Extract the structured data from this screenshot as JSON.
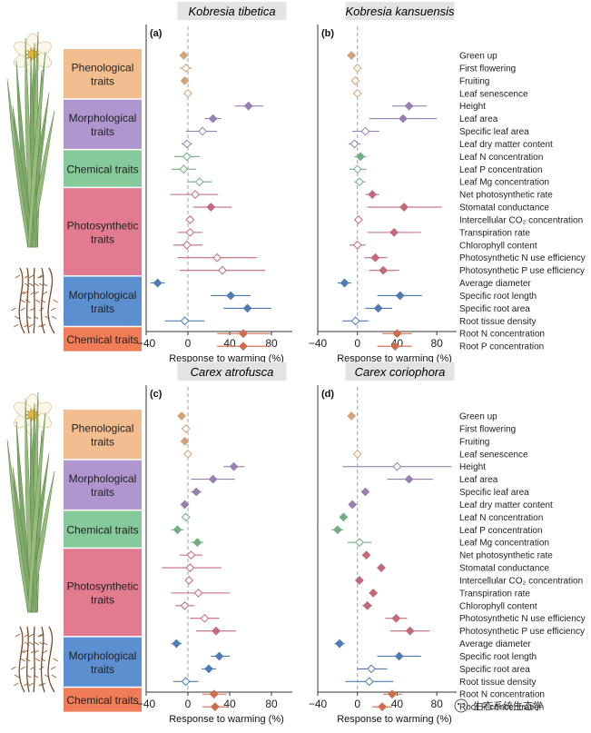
{
  "figure": {
    "watermark": "生态系统生态学"
  },
  "chart_data": {
    "type": "forest",
    "xlabel": "Response to warming (%)",
    "xlim": [
      -40,
      100
    ],
    "xticks": [
      "−40",
      "0",
      "40",
      "80"
    ],
    "trait_labels": [
      "Green up",
      "First flowering",
      "Fruiting",
      "Leaf senescence",
      "Height",
      "Leaf area",
      "Specific leaf area",
      "Leaf dry matter content",
      "Leaf N concentration",
      "Leaf P concentration",
      "Leaf Mg concentration",
      "Net photosynthetic rate",
      "Stomatal conductance",
      "Intercellular CO₂ concentration",
      "Transpiration rate",
      "Chlorophyll content",
      "Photosynthetic N use efficiency",
      "Photosynthetic P use efficiency",
      "Average diameter",
      "Specific root length",
      "Specific root area",
      "Root tissue density",
      "Root N concentration",
      "Root P concentration"
    ],
    "category_groups": [
      {
        "lines": [
          "Phenological",
          "traits"
        ],
        "first": 0,
        "last": 3,
        "color": "#F2BE8F"
      },
      {
        "lines": [
          "Morphological",
          "traits"
        ],
        "first": 4,
        "last": 7,
        "color": "#B096CE"
      },
      {
        "lines": [
          "Chemical traits"
        ],
        "first": 8,
        "last": 10,
        "color": "#86C99A"
      },
      {
        "lines": [
          "Photosynthetic",
          "traits"
        ],
        "first": 11,
        "last": 17,
        "color": "#E27A90"
      },
      {
        "lines": [
          "Morphological",
          "traits"
        ],
        "first": 18,
        "last": 21,
        "color": "#5B8FD0"
      },
      {
        "lines": [
          "Chemical traits"
        ],
        "first": 22,
        "last": 23,
        "color": "#F07D58"
      }
    ],
    "panels": [
      {
        "label": "(a)",
        "title": "Kobresia tibetica",
        "points": [
          {
            "mean": -4,
            "lo": -8,
            "hi": 0,
            "filled": true
          },
          {
            "mean": -2,
            "lo": -8,
            "hi": 4,
            "filled": false
          },
          {
            "mean": -3,
            "lo": -6,
            "hi": 0,
            "filled": true
          },
          {
            "mean": 0,
            "lo": -1,
            "hi": 1,
            "filled": false
          },
          {
            "mean": 58,
            "lo": 45,
            "hi": 72,
            "filled": true
          },
          {
            "mean": 24,
            "lo": 16,
            "hi": 32,
            "filled": true
          },
          {
            "mean": 14,
            "lo": -2,
            "hi": 28,
            "filled": false
          },
          {
            "mean": -1,
            "lo": -6,
            "hi": 4,
            "filled": false
          },
          {
            "mean": -1,
            "lo": -13,
            "hi": 11,
            "filled": false
          },
          {
            "mean": -4,
            "lo": -16,
            "hi": 8,
            "filled": false
          },
          {
            "mean": 11,
            "lo": 0,
            "hi": 23,
            "filled": false
          },
          {
            "mean": 7,
            "lo": -17,
            "hi": 29,
            "filled": false
          },
          {
            "mean": 22,
            "lo": 5,
            "hi": 42,
            "filled": true
          },
          {
            "mean": 2,
            "lo": 0,
            "hi": 4,
            "filled": false
          },
          {
            "mean": 2,
            "lo": -10,
            "hi": 14,
            "filled": false
          },
          {
            "mean": -1,
            "lo": -14,
            "hi": 14,
            "filled": false
          },
          {
            "mean": 28,
            "lo": -10,
            "hi": 66,
            "filled": false
          },
          {
            "mean": 33,
            "lo": -8,
            "hi": 74,
            "filled": false
          },
          {
            "mean": -29,
            "lo": -36,
            "hi": -22,
            "filled": true
          },
          {
            "mean": 41,
            "lo": 22,
            "hi": 60,
            "filled": true
          },
          {
            "mean": 57,
            "lo": 34,
            "hi": 80,
            "filled": true
          },
          {
            "mean": -3,
            "lo": -22,
            "hi": 16,
            "filled": false
          },
          {
            "mean": 53,
            "lo": 28,
            "hi": 79,
            "filled": true
          },
          {
            "mean": 53,
            "lo": 28,
            "hi": 79,
            "filled": true
          }
        ]
      },
      {
        "label": "(b)",
        "title": "Kobresia kansuensis",
        "points": [
          {
            "mean": -6,
            "lo": -10,
            "hi": -2,
            "filled": true
          },
          {
            "mean": 0,
            "lo": -4,
            "hi": 4,
            "filled": false
          },
          {
            "mean": -2,
            "lo": -5,
            "hi": 2,
            "filled": false
          },
          {
            "mean": 0,
            "lo": -2,
            "hi": 2,
            "filled": false
          },
          {
            "mean": 52,
            "lo": 35,
            "hi": 70,
            "filled": true
          },
          {
            "mean": 46,
            "lo": 12,
            "hi": 80,
            "filled": true
          },
          {
            "mean": 8,
            "lo": -5,
            "hi": 22,
            "filled": false
          },
          {
            "mean": -3,
            "lo": -9,
            "hi": 3,
            "filled": false
          },
          {
            "mean": 3,
            "lo": -3,
            "hi": 9,
            "filled": true
          },
          {
            "mean": 0,
            "lo": -8,
            "hi": 9,
            "filled": false
          },
          {
            "mean": 2,
            "lo": -3,
            "hi": 8,
            "filled": false
          },
          {
            "mean": 15,
            "lo": 8,
            "hi": 22,
            "filled": true
          },
          {
            "mean": 47,
            "lo": 10,
            "hi": 85,
            "filled": true
          },
          {
            "mean": 1,
            "lo": -2,
            "hi": 4,
            "filled": false
          },
          {
            "mean": 37,
            "lo": 10,
            "hi": 64,
            "filled": true
          },
          {
            "mean": 0,
            "lo": -8,
            "hi": 8,
            "filled": false
          },
          {
            "mean": 18,
            "lo": 7,
            "hi": 30,
            "filled": true
          },
          {
            "mean": 26,
            "lo": 12,
            "hi": 42,
            "filled": true
          },
          {
            "mean": -13,
            "lo": -20,
            "hi": -6,
            "filled": true
          },
          {
            "mean": 43,
            "lo": 20,
            "hi": 65,
            "filled": true
          },
          {
            "mean": 21,
            "lo": 8,
            "hi": 35,
            "filled": true
          },
          {
            "mean": -2,
            "lo": -15,
            "hi": 11,
            "filled": false
          },
          {
            "mean": 40,
            "lo": 25,
            "hi": 55,
            "filled": true
          },
          {
            "mean": 38,
            "lo": 20,
            "hi": 55,
            "filled": true
          }
        ]
      },
      {
        "label": "(c)",
        "title": "Carex atrofusca",
        "points": [
          {
            "mean": -6,
            "lo": -10,
            "hi": -2,
            "filled": true
          },
          {
            "mean": -2,
            "lo": -6,
            "hi": 2,
            "filled": false
          },
          {
            "mean": -3,
            "lo": -7,
            "hi": 1,
            "filled": true
          },
          {
            "mean": 0,
            "lo": -2,
            "hi": 2,
            "filled": false
          },
          {
            "mean": 44,
            "lo": 34,
            "hi": 54,
            "filled": true
          },
          {
            "mean": 24,
            "lo": 3,
            "hi": 45,
            "filled": true
          },
          {
            "mean": 8,
            "lo": 3,
            "hi": 13,
            "filled": true
          },
          {
            "mean": -3,
            "lo": -7,
            "hi": 1,
            "filled": true
          },
          {
            "mean": -2,
            "lo": -6,
            "hi": 2,
            "filled": false
          },
          {
            "mean": -10,
            "lo": -16,
            "hi": -4,
            "filled": true
          },
          {
            "mean": 9,
            "lo": 3,
            "hi": 15,
            "filled": true
          },
          {
            "mean": 3,
            "lo": -8,
            "hi": 14,
            "filled": false
          },
          {
            "mean": 2,
            "lo": -25,
            "hi": 32,
            "filled": false
          },
          {
            "mean": 1,
            "lo": -2,
            "hi": 4,
            "filled": false
          },
          {
            "mean": 10,
            "lo": -16,
            "hi": 40,
            "filled": false
          },
          {
            "mean": -3,
            "lo": -12,
            "hi": 6,
            "filled": false
          },
          {
            "mean": 16,
            "lo": 2,
            "hi": 30,
            "filled": false
          },
          {
            "mean": 27,
            "lo": 8,
            "hi": 46,
            "filled": true
          },
          {
            "mean": -11,
            "lo": -16,
            "hi": -6,
            "filled": true
          },
          {
            "mean": 30,
            "lo": 22,
            "hi": 40,
            "filled": true
          },
          {
            "mean": 20,
            "lo": 13,
            "hi": 27,
            "filled": true
          },
          {
            "mean": -2,
            "lo": -14,
            "hi": 10,
            "filled": false
          },
          {
            "mean": 25,
            "lo": 14,
            "hi": 37,
            "filled": true
          },
          {
            "mean": 26,
            "lo": 14,
            "hi": 38,
            "filled": true
          }
        ]
      },
      {
        "label": "(d)",
        "title": "Carex coriophora",
        "points": [
          {
            "mean": -6,
            "lo": -8,
            "hi": -3,
            "filled": true
          },
          null,
          null,
          {
            "mean": 0,
            "lo": -2,
            "hi": 2,
            "filled": false
          },
          {
            "mean": 40,
            "lo": -15,
            "hi": 95,
            "filled": false
          },
          {
            "mean": 52,
            "lo": 30,
            "hi": 76,
            "filled": true
          },
          {
            "mean": 8,
            "lo": 5,
            "hi": 11,
            "filled": true
          },
          {
            "mean": -5,
            "lo": -8,
            "hi": -2,
            "filled": true
          },
          {
            "mean": -14,
            "lo": -18,
            "hi": -10,
            "filled": true
          },
          {
            "mean": -20,
            "lo": -26,
            "hi": -14,
            "filled": true
          },
          {
            "mean": 2,
            "lo": -10,
            "hi": 14,
            "filled": false
          },
          {
            "mean": 9,
            "lo": 5,
            "hi": 13,
            "filled": true
          },
          {
            "mean": 24,
            "lo": 20,
            "hi": 28,
            "filled": true
          },
          {
            "mean": 2,
            "lo": -1,
            "hi": 5,
            "filled": true
          },
          {
            "mean": 16,
            "lo": 12,
            "hi": 20,
            "filled": true
          },
          {
            "mean": 10,
            "lo": 5,
            "hi": 15,
            "filled": true
          },
          {
            "mean": 39,
            "lo": 28,
            "hi": 50,
            "filled": true
          },
          {
            "mean": 53,
            "lo": 33,
            "hi": 73,
            "filled": true
          },
          {
            "mean": -18,
            "lo": -23,
            "hi": -13,
            "filled": true
          },
          {
            "mean": 42,
            "lo": 20,
            "hi": 64,
            "filled": true
          },
          {
            "mean": 14,
            "lo": 0,
            "hi": 30,
            "filled": false
          },
          {
            "mean": 12,
            "lo": -12,
            "hi": 36,
            "filled": false
          },
          {
            "mean": 35,
            "lo": 26,
            "hi": 45,
            "filled": true
          },
          {
            "mean": 25,
            "lo": 15,
            "hi": 35,
            "filled": true
          }
        ]
      }
    ]
  }
}
